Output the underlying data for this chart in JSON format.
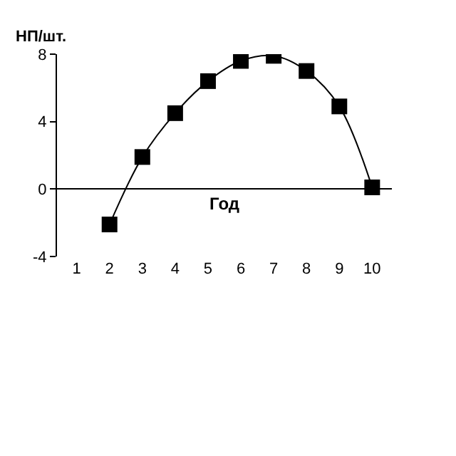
{
  "chart_data": {
    "type": "line",
    "xlabel": "Год",
    "ylabel": "НП/шт.",
    "categories": [
      "1",
      "2",
      "3",
      "4",
      "5",
      "6",
      "7",
      "8",
      "9",
      "10"
    ],
    "series": [
      {
        "color": "#000000",
        "values": [
          null,
          -2.1,
          1.9,
          4.5,
          6.4,
          7.6,
          7.9,
          7.0,
          4.9,
          0.1
        ]
      }
    ],
    "ylim": [
      -4,
      8
    ],
    "yticks": [
      -4,
      0,
      4,
      8
    ],
    "legend": false,
    "marker": "square",
    "line_style": "solid"
  }
}
